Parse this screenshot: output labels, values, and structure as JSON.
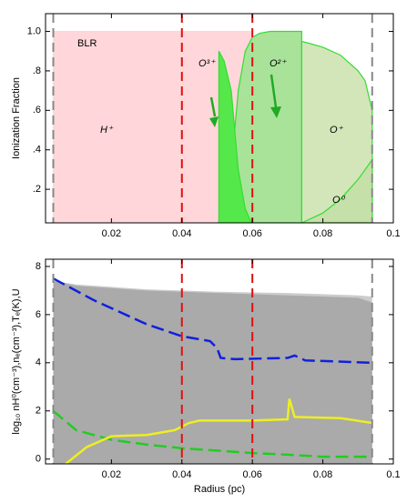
{
  "chart_data": [
    {
      "type": "area",
      "ylabel": "Ionization Fraction",
      "xlim": [
        0.0013,
        0.1
      ],
      "ylim": [
        0.03,
        1.09
      ],
      "xticks": [
        0.02,
        0.04,
        0.06,
        0.08,
        0.1
      ],
      "yticks": [
        {
          "value": 0.2,
          "label": ".2"
        },
        {
          "value": 0.4,
          "label": ".4"
        },
        {
          "value": 0.6,
          "label": ".6"
        },
        {
          "value": 0.8,
          "label": ".8"
        },
        {
          "value": 1,
          "label": "1.0"
        }
      ],
      "annotations": [
        "BLR"
      ],
      "vlines": [
        {
          "x": 0.0035,
          "color": "#888888"
        },
        {
          "x": 0.04,
          "color": "#e01010"
        },
        {
          "x": 0.06,
          "color": "#e01010"
        },
        {
          "x": 0.094,
          "color": "#888888"
        }
      ],
      "series": [
        {
          "name": "H⁺",
          "color": "#ffd6da",
          "line": "#ffd6da",
          "label_color": "#e02020",
          "x": [
            0.0035,
            0.02,
            0.04,
            0.06
          ],
          "values": [
            1,
            1,
            1,
            1
          ]
        },
        {
          "name": "O²⁺",
          "color": "#a9e39a",
          "line": "#33dd33",
          "label_color": "#22aa22",
          "x": [
            0.05,
            0.052,
            0.054,
            0.055,
            0.056,
            0.058,
            0.06,
            0.062,
            0.065,
            0.07,
            0.074
          ],
          "values": [
            0,
            0.1,
            0.3,
            0.5,
            0.7,
            0.9,
            0.97,
            0.99,
            1,
            1,
            1
          ]
        },
        {
          "name": "O³⁺",
          "color": "#55e84a",
          "line": "#33dd33",
          "label_color": "#22aa22",
          "x": [
            0.0505,
            0.052,
            0.054,
            0.055,
            0.056,
            0.058,
            0.06
          ],
          "values": [
            0.9,
            0.85,
            0.7,
            0.5,
            0.3,
            0.1,
            0.02
          ]
        },
        {
          "name": "O⁺",
          "color": "#d3e6b9",
          "line": "#33dd33",
          "label_color": "#22aa22",
          "x": [
            0.074,
            0.076,
            0.08,
            0.085,
            0.09,
            0.092,
            0.094
          ],
          "values": [
            0.95,
            0.94,
            0.92,
            0.88,
            0.8,
            0.75,
            0.6
          ]
        },
        {
          "name": "O⁰",
          "color": "#c5e0a8",
          "line": "#33dd33",
          "label_color": "#22aa22",
          "x": [
            0.074,
            0.08,
            0.085,
            0.09,
            0.094
          ],
          "values": [
            0.03,
            0.08,
            0.15,
            0.25,
            0.35
          ]
        }
      ]
    },
    {
      "type": "line",
      "xlabel": "Radius (pc)",
      "ylabel": "log₁₀ nH⁰(cm⁻³),nₑ(cm⁻³),Tₑ(K),U",
      "xlim": [
        0.0013,
        0.1
      ],
      "ylim": [
        -0.2,
        8.3
      ],
      "xticks": [
        0.02,
        0.04,
        0.06,
        0.08,
        0.1
      ],
      "yticks": [
        0,
        2,
        4,
        6,
        8
      ],
      "vlines": [
        {
          "x": 0.0035,
          "color": "#888888"
        },
        {
          "x": 0.04,
          "color": "#e01010"
        },
        {
          "x": 0.06,
          "color": "#e01010"
        },
        {
          "x": 0.094,
          "color": "#888888"
        }
      ],
      "series": [
        {
          "style": "area",
          "color": "#cccccc",
          "x": [
            0.0035,
            0.01,
            0.02,
            0.03,
            0.04,
            0.05,
            0.06,
            0.07,
            0.08,
            0.09,
            0.094
          ],
          "values": [
            7.4,
            7.25,
            7.15,
            7.05,
            7.0,
            6.95,
            6.92,
            6.9,
            6.85,
            6.8,
            6.75
          ]
        },
        {
          "style": "area",
          "color": "#aaaaaa",
          "x": [
            0.0035,
            0.01,
            0.02,
            0.03,
            0.04,
            0.05,
            0.06,
            0.07,
            0.08,
            0.09,
            0.094
          ],
          "values": [
            7.4,
            7.2,
            7.1,
            7.0,
            6.95,
            6.9,
            6.85,
            6.8,
            6.75,
            6.7,
            6.5
          ]
        },
        {
          "style": "dashed",
          "color": "#1020dd",
          "x": [
            0.0035,
            0.015,
            0.03,
            0.04,
            0.048,
            0.05,
            0.051,
            0.055,
            0.07,
            0.072,
            0.075,
            0.094
          ],
          "values": [
            7.5,
            6.6,
            5.6,
            5.1,
            4.9,
            4.6,
            4.2,
            4.15,
            4.2,
            4.3,
            4.1,
            4.0
          ]
        },
        {
          "style": "dashed",
          "color": "#22cc22",
          "x": [
            0.0035,
            0.01,
            0.02,
            0.03,
            0.04,
            0.05,
            0.06,
            0.07,
            0.08,
            0.094
          ],
          "values": [
            2.0,
            1.2,
            0.8,
            0.6,
            0.45,
            0.35,
            0.25,
            0.18,
            0.1,
            0.1
          ]
        },
        {
          "style": "solid",
          "color": "#eeee22",
          "x": [
            0.007,
            0.013,
            0.02,
            0.03,
            0.038,
            0.042,
            0.045,
            0.06,
            0.07,
            0.0705,
            0.072,
            0.085,
            0.094
          ],
          "values": [
            -0.2,
            0.5,
            0.95,
            1.0,
            1.2,
            1.5,
            1.6,
            1.6,
            1.65,
            2.5,
            1.75,
            1.7,
            1.5
          ]
        }
      ]
    }
  ]
}
